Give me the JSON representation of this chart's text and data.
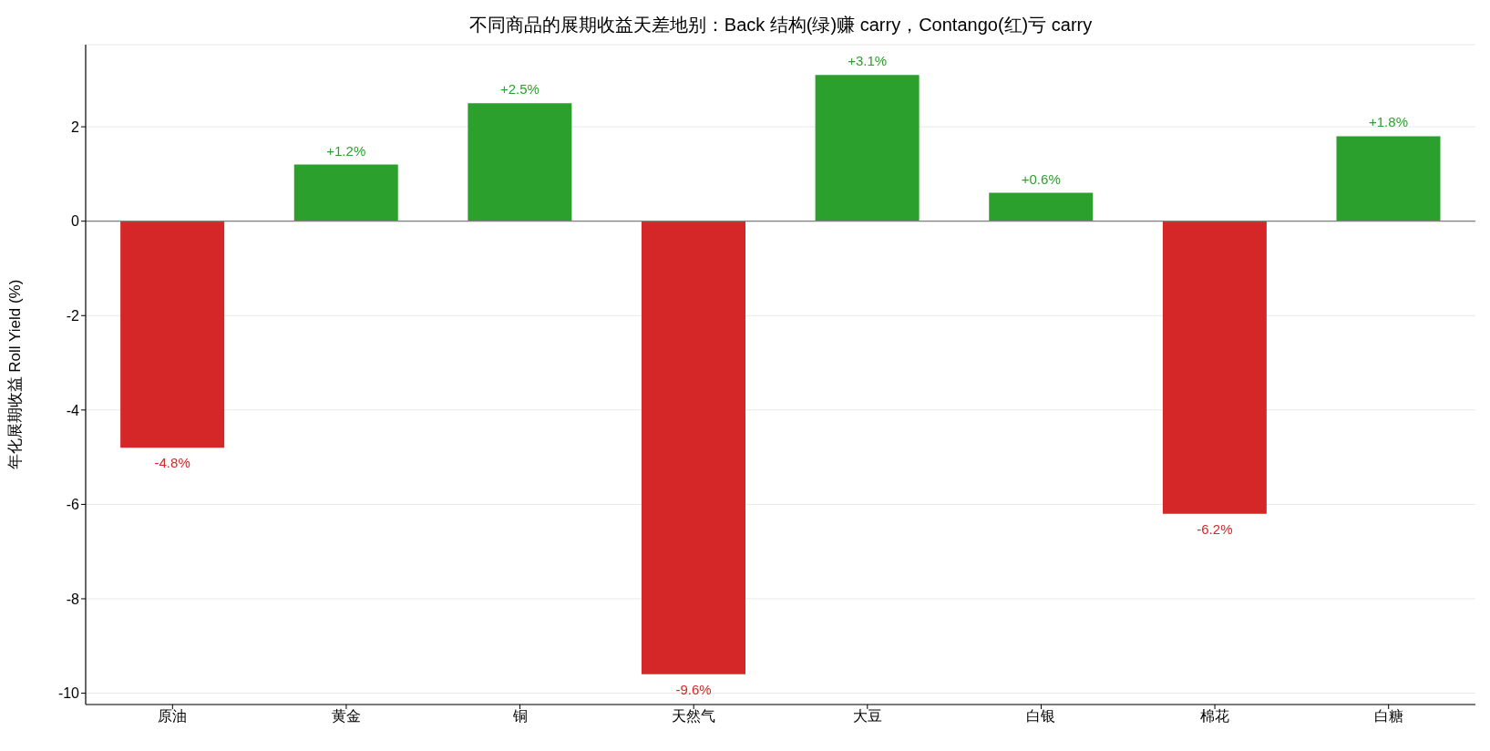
{
  "chart_data": {
    "type": "bar",
    "title": "不同商品的展期收益天差地别：Back 结构(绿)赚 carry，Contango(红)亏 carry",
    "ylabel": "年化展期收益 Roll Yield (%)",
    "categories": [
      "原油",
      "黄金",
      "铜",
      "天然气",
      "大豆",
      "白银",
      "棉花",
      "白糖"
    ],
    "values": [
      -4.8,
      1.2,
      2.5,
      -9.6,
      3.1,
      0.6,
      -6.2,
      1.8
    ],
    "colors": [
      "#d62728",
      "#2ca02c",
      "#2ca02c",
      "#d62728",
      "#2ca02c",
      "#2ca02c",
      "#d62728",
      "#2ca02c"
    ],
    "value_labels": [
      "-4.8%",
      "+1.2%",
      "+2.5%",
      "-9.6%",
      "+3.1%",
      "+0.6%",
      "-6.2%",
      "+1.8%"
    ],
    "ylim": [
      -10.24,
      3.74
    ],
    "yticks": [
      -10,
      -8,
      -6,
      -4,
      -2,
      0,
      2
    ],
    "grid": "y",
    "ref_lines": [
      {
        "axis": "y",
        "value": 0,
        "color": "#808080"
      }
    ]
  }
}
